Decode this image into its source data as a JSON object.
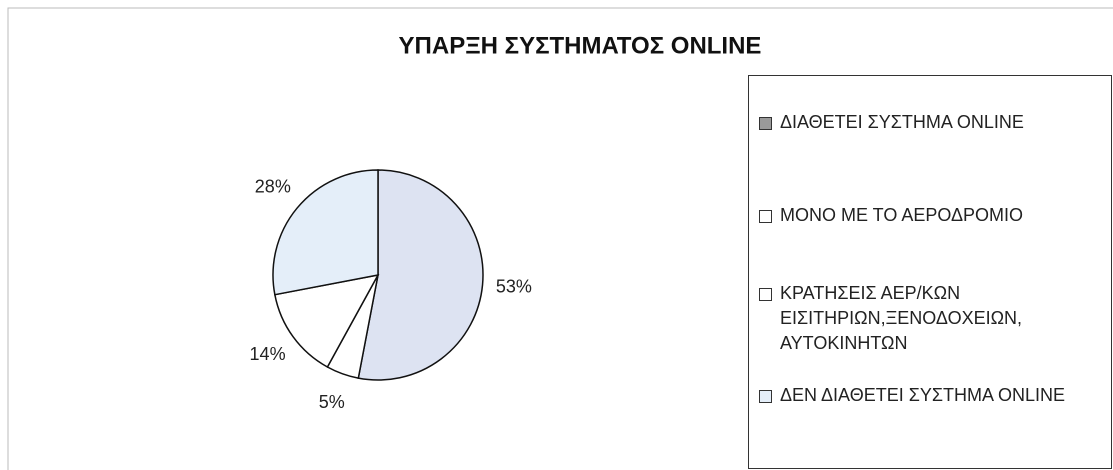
{
  "chart_data": {
    "type": "pie",
    "title": "ΥΠΑΡΞΗ ΣΥΣΤΗΜΑΤΟΣ ONLINE",
    "categories": [
      "ΔΙΑΘΕΤΕΙ ΣΥΣΤΗΜΑ ONLINE",
      "ΜΟΝΟ ΜΕ ΤΟ ΑΕΡΟΔΡΟΜΙΟ",
      "ΚΡΑΤΗΣΕΙΣ ΑΕΡ/ΚΩΝ ΕΙΣΙΤΗΡΙΩΝ,ΞΕΝΟΔΟΧΕΙΩΝ, ΑΥΤΟΚΙΝΗΤΩΝ",
      "ΔΕΝ ΔΙΑΘΕΤΕΙ ΣΥΣΤΗΜΑ ONLINE"
    ],
    "values": [
      53,
      5,
      14,
      28
    ],
    "value_labels": [
      "53%",
      "5%",
      "14%",
      "28%"
    ],
    "colors": [
      "#dde3f2",
      "#ffffff",
      "#ffffff",
      "#e4eef9"
    ],
    "legend": "right"
  }
}
